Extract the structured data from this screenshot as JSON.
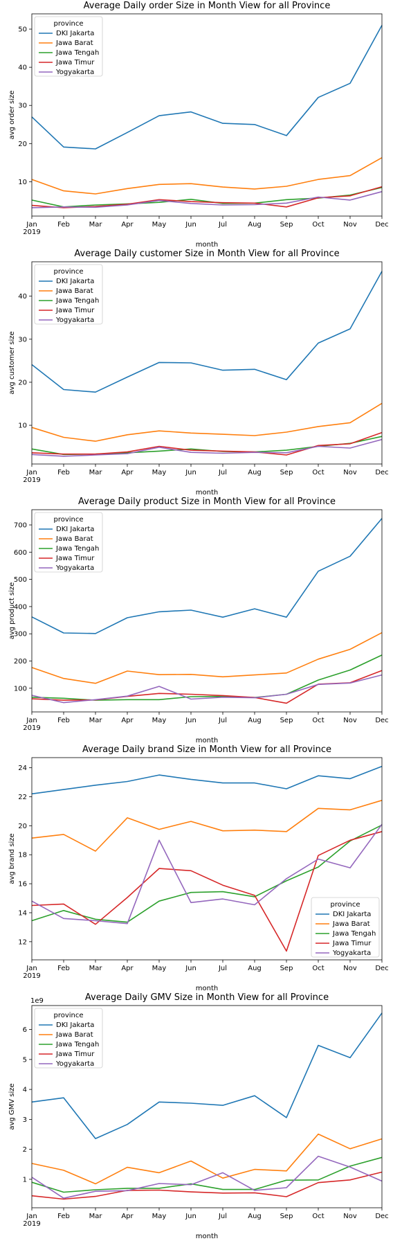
{
  "months": [
    "Jan",
    "Feb",
    "Mar",
    "Apr",
    "May",
    "Jun",
    "Jul",
    "Aug",
    "Sep",
    "Oct",
    "Nov",
    "Dec"
  ],
  "year_label": "2019",
  "series_colors": {
    "DKI Jakarta": "#1f77b4",
    "Jawa Barat": "#ff7f0e",
    "Jawa Tengah": "#2ca02c",
    "Jawa Timur": "#d62728",
    "Yogyakarta": "#9467bd"
  },
  "chart_data": [
    {
      "type": "line",
      "title": "Average Daily order Size in Month View for all Province",
      "xlabel": "month",
      "ylabel": "avg order size",
      "ylim": [
        1,
        54
      ],
      "yticks": [
        10,
        20,
        30,
        40,
        50
      ],
      "offset_label": "",
      "legend_title": "province",
      "legend_position": "upper-left",
      "x": [
        "Jan",
        "Feb",
        "Mar",
        "Apr",
        "May",
        "Jun",
        "Jul",
        "Aug",
        "Sep",
        "Oct",
        "Nov",
        "Dec"
      ],
      "series": [
        {
          "name": "DKI Jakarta",
          "values": [
            27,
            19.1,
            18.6,
            22.9,
            27.3,
            28.3,
            25.3,
            25,
            22.1,
            32.1,
            35.8,
            51
          ]
        },
        {
          "name": "Jawa Barat",
          "values": [
            10.6,
            7.6,
            6.8,
            8.2,
            9.3,
            9.5,
            8.6,
            8.1,
            8.8,
            10.6,
            11.6,
            16.3
          ]
        },
        {
          "name": "Jawa Tengah",
          "values": [
            5.2,
            3.4,
            3.9,
            4.2,
            4.6,
            5.4,
            4.3,
            4.4,
            5.3,
            5.7,
            6.5,
            8.5
          ]
        },
        {
          "name": "Jawa Timur",
          "values": [
            3.8,
            3.2,
            3.5,
            4.1,
            5.3,
            4.8,
            4.5,
            4.4,
            3.4,
            5.8,
            6.3,
            8.7
          ]
        },
        {
          "name": "Yogyakarta",
          "values": [
            3.2,
            3.4,
            3.3,
            3.9,
            5.1,
            4.3,
            3.9,
            4,
            4.4,
            6,
            5.2,
            7.4
          ]
        }
      ]
    },
    {
      "type": "line",
      "title": "Average Daily customer Size in Month View for all Province",
      "xlabel": "month",
      "ylabel": "avg customer size",
      "ylim": [
        1,
        48
      ],
      "yticks": [
        10,
        20,
        30,
        40
      ],
      "offset_label": "",
      "legend_title": "province",
      "legend_position": "upper-left",
      "x": [
        "Jan",
        "Feb",
        "Mar",
        "Apr",
        "May",
        "Jun",
        "Jul",
        "Aug",
        "Sep",
        "Oct",
        "Nov",
        "Dec"
      ],
      "series": [
        {
          "name": "DKI Jakarta",
          "values": [
            24.1,
            18.3,
            17.7,
            21.2,
            24.6,
            24.5,
            22.8,
            23,
            20.6,
            29.1,
            32.4,
            45.8
          ]
        },
        {
          "name": "Jawa Barat",
          "values": [
            9.5,
            7.2,
            6.3,
            7.8,
            8.7,
            8.2,
            7.9,
            7.6,
            8.4,
            9.7,
            10.6,
            15.1
          ]
        },
        {
          "name": "Jawa Tengah",
          "values": [
            4.5,
            3.2,
            3.3,
            3.6,
            4,
            4.5,
            3.9,
            3.8,
            4.2,
            5.1,
            5.8,
            7.4
          ]
        },
        {
          "name": "Jawa Timur",
          "values": [
            3.6,
            3.3,
            3.3,
            3.8,
            5.1,
            4.2,
            4,
            3.8,
            3.1,
            5.3,
            5.7,
            8.3
          ]
        },
        {
          "name": "Yogyakarta",
          "values": [
            3.2,
            2.8,
            3.1,
            3.4,
            4.9,
            3.7,
            3.5,
            3.7,
            3.6,
            5.1,
            4.7,
            6.7
          ]
        }
      ]
    },
    {
      "type": "line",
      "title": "Average Daily product Size in Month View for all Province",
      "xlabel": "month",
      "ylabel": "avg product size",
      "ylim": [
        13,
        756
      ],
      "yticks": [
        100,
        200,
        300,
        400,
        500,
        600,
        700
      ],
      "offset_label": "",
      "legend_title": "province",
      "legend_position": "upper-left",
      "x": [
        "Jan",
        "Feb",
        "Mar",
        "Apr",
        "May",
        "Jun",
        "Jul",
        "Aug",
        "Sep",
        "Oct",
        "Nov",
        "Dec"
      ],
      "series": [
        {
          "name": "DKI Jakarta",
          "values": [
            362,
            303,
            301,
            359,
            381,
            387,
            361,
            392,
            361,
            530,
            585,
            724
          ]
        },
        {
          "name": "Jawa Barat",
          "values": [
            176,
            136,
            118,
            163,
            150,
            151,
            142,
            149,
            156,
            207,
            243,
            304
          ]
        },
        {
          "name": "Jawa Tengah",
          "values": [
            67,
            63,
            56,
            58,
            58,
            69,
            70,
            66,
            78,
            130,
            167,
            222
          ]
        },
        {
          "name": "Jawa Timur",
          "values": [
            61,
            56,
            57,
            70,
            81,
            78,
            73,
            66,
            45,
            115,
            120,
            165
          ]
        },
        {
          "name": "Yogyakarta",
          "values": [
            74,
            47,
            58,
            71,
            107,
            60,
            67,
            65,
            78,
            114,
            119,
            149
          ]
        }
      ]
    },
    {
      "type": "line",
      "title": "Average Daily brand Size in Month View for all Province",
      "xlabel": "month",
      "ylabel": "avg brand size",
      "ylim": [
        10.75,
        24.7
      ],
      "yticks": [
        12,
        14,
        16,
        18,
        20,
        22,
        24
      ],
      "offset_label": "",
      "legend_title": "province",
      "legend_position": "lower-right",
      "x": [
        "Jan",
        "Feb",
        "Mar",
        "Apr",
        "May",
        "Jun",
        "Jul",
        "Aug",
        "Sep",
        "Oct",
        "Nov",
        "Dec"
      ],
      "series": [
        {
          "name": "DKI Jakarta",
          "values": [
            22.2,
            22.5,
            22.8,
            23.05,
            23.5,
            23.2,
            22.95,
            22.95,
            22.55,
            23.45,
            23.25,
            24.1
          ]
        },
        {
          "name": "Jawa Barat",
          "values": [
            19.15,
            19.4,
            18.25,
            20.55,
            19.75,
            20.3,
            19.65,
            19.7,
            19.6,
            21.2,
            21.1,
            21.75
          ]
        },
        {
          "name": "Jawa Tengah",
          "values": [
            13.45,
            14.15,
            13.55,
            13.35,
            14.8,
            15.4,
            15.45,
            15.1,
            16.2,
            17.15,
            18.95,
            20.05
          ]
        },
        {
          "name": "Jawa Timur",
          "values": [
            14.5,
            14.6,
            13.2,
            15.05,
            17.05,
            16.9,
            15.9,
            15.2,
            11.35,
            17.95,
            19,
            19.6
          ]
        },
        {
          "name": "Yogyakarta",
          "values": [
            14.8,
            13.6,
            13.45,
            13.25,
            19,
            14.7,
            14.95,
            14.55,
            16.35,
            17.7,
            17.1,
            20.1
          ]
        }
      ]
    },
    {
      "type": "line",
      "title": "Average Daily GMV Size in Month View for all Province",
      "xlabel": "month",
      "ylabel": "avg GMV size",
      "ylim": [
        0.05,
        6.8
      ],
      "yticks": [
        1,
        2,
        3,
        4,
        5,
        6
      ],
      "offset_label": "1e9",
      "legend_title": "province",
      "legend_position": "upper-left",
      "x": [
        "Jan",
        "Feb",
        "Mar",
        "Apr",
        "May",
        "Jun",
        "Jul",
        "Aug",
        "Sep",
        "Oct",
        "Nov",
        "Dec"
      ],
      "series": [
        {
          "name": "DKI Jakarta",
          "values": [
            3.58,
            3.72,
            2.36,
            2.83,
            3.58,
            3.54,
            3.47,
            3.79,
            3.06,
            5.47,
            5.06,
            6.55
          ]
        },
        {
          "name": "Jawa Barat",
          "values": [
            1.53,
            1.3,
            0.85,
            1.4,
            1.22,
            1.61,
            1.04,
            1.33,
            1.28,
            2.51,
            2.02,
            2.35
          ]
        },
        {
          "name": "Jawa Tengah",
          "values": [
            0.9,
            0.57,
            0.65,
            0.7,
            0.7,
            0.85,
            0.66,
            0.66,
            0.97,
            0.98,
            1.44,
            1.73
          ]
        },
        {
          "name": "Jawa Timur",
          "values": [
            0.45,
            0.34,
            0.43,
            0.63,
            0.64,
            0.58,
            0.54,
            0.55,
            0.42,
            0.89,
            0.98,
            1.24
          ]
        },
        {
          "name": "Yogyakarta",
          "values": [
            1.07,
            0.37,
            0.6,
            0.62,
            0.86,
            0.82,
            1.22,
            0.63,
            0.72,
            1.77,
            1.41,
            0.94
          ]
        }
      ]
    }
  ]
}
